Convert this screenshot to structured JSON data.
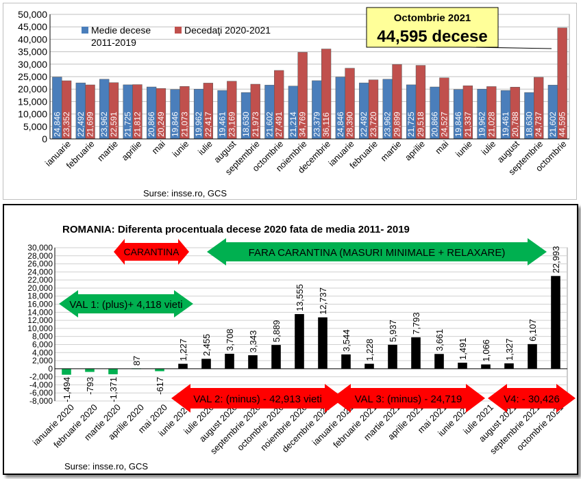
{
  "chart_data": [
    {
      "type": "bar",
      "title": "",
      "categories": [
        "ianuarie",
        "februarie",
        "martie",
        "aprilie",
        "mai",
        "iunie",
        "iulie",
        "august",
        "septembrie",
        "octombrie",
        "noiembrie",
        "decembrie",
        "ianuarie",
        "februarie",
        "martie",
        "aprilie",
        "mai",
        "iunie",
        "iulie",
        "august",
        "septembrie",
        "octombrie"
      ],
      "value_labels": [
        [
          "24,846",
          "22,492",
          "23,962",
          "21,725",
          "20,866",
          "19,846",
          "19,962",
          "19,461",
          "18,630",
          "21,602",
          "21,214",
          "23,379",
          "24,846",
          "22,492",
          "23,962",
          "21,725",
          "20,866",
          "19,846",
          "19,962",
          "19,461",
          "18,630",
          "21,602"
        ],
        [
          "23,352",
          "21,699",
          "22,591",
          "21,812",
          "20,249",
          "21,073",
          "22,417",
          "23,169",
          "21,973",
          "27,491",
          "34,769",
          "36,116",
          "28,390",
          "23,720",
          "29,899",
          "29,518",
          "24,527",
          "21,337",
          "21,028",
          "20,788",
          "24,737",
          "44,595"
        ]
      ],
      "series": [
        {
          "name": "Medie decese 2011-2019",
          "color": "#4a7ebb",
          "values": [
            24846,
            22492,
            23962,
            21725,
            20866,
            19846,
            19962,
            19461,
            18630,
            21602,
            21214,
            23379,
            24846,
            22492,
            23962,
            21725,
            20866,
            19846,
            19962,
            19461,
            18630,
            21602
          ]
        },
        {
          "name": "Decedaţi 2020-2021",
          "color": "#c0504d",
          "values": [
            23352,
            21699,
            22591,
            21812,
            20249,
            21073,
            22417,
            23169,
            21973,
            27491,
            34769,
            36116,
            28390,
            23720,
            29899,
            29518,
            24527,
            21337,
            21028,
            20788,
            24737,
            44595
          ]
        }
      ],
      "ylim": [
        0,
        50000
      ],
      "yticks": [
        "0",
        "5,000",
        "10,000",
        "15,000",
        "20,000",
        "25,000",
        "30,000",
        "35,000",
        "40,000",
        "45,000",
        "50,000"
      ],
      "legend": {
        "series1_line1": "Medie decese",
        "series1_line2": "2011-2019",
        "series2": "Decedaţi 2020-2021"
      },
      "callout": {
        "line1": "Octombrie 2021",
        "line2": "44,595 decese",
        "fill": "#ffff99"
      },
      "source": "Surse: insse.ro, GCS"
    },
    {
      "type": "bar",
      "title": "ROMANIA: Diferenta procentuala decese 2020 fata de media 2011- 2019",
      "categories": [
        "ianuarie 2020",
        "februarie 2020",
        "martie 2020",
        "aprilie 2020",
        "mai 2020",
        "iunie 2020",
        "iulie 2020",
        "august 2020",
        "septembrie 2020",
        "octombrie 2020",
        "noiembrie 2020",
        "decembrie 2020",
        "ianuarie 2021",
        "februarie 2021",
        "martie 2021",
        "aprilie 2021",
        "mai 2021",
        "iunie 2021",
        "iulie 2021",
        "august 2021",
        "septembrie 2021",
        "octombrie 2021"
      ],
      "values": [
        -1494,
        -793,
        -1371,
        87,
        -617,
        1227,
        2455,
        3708,
        3343,
        5889,
        13555,
        12737,
        3544,
        1228,
        5937,
        7793,
        3661,
        1491,
        1066,
        1327,
        6107,
        22993
      ],
      "value_labels": [
        "-1,494",
        "-793",
        "-1,371",
        "87",
        "-617",
        "1,227",
        "2,455",
        "3,708",
        "3,343",
        "5,889",
        "13,555",
        "12,737",
        "3,544",
        "1,228",
        "5,937",
        "7,793",
        "3,661",
        "1,491",
        "1,066",
        "1,327",
        "6,107",
        "22,993"
      ],
      "bar_colors": [
        "#00b050",
        "#00b050",
        "#00b050",
        "#00b050",
        "#00b050",
        "#000000",
        "#000000",
        "#000000",
        "#000000",
        "#000000",
        "#000000",
        "#000000",
        "#000000",
        "#000000",
        "#000000",
        "#000000",
        "#000000",
        "#000000",
        "#000000",
        "#000000",
        "#000000",
        "#000000"
      ],
      "ylim": [
        -8000,
        30000
      ],
      "yticks": [
        "-8,000",
        "-6,000",
        "-4,000",
        "-2,000",
        "0",
        "2,000",
        "4,000",
        "6,000",
        "8,000",
        "10,000",
        "12,000",
        "14,000",
        "16,000",
        "18,000",
        "20,000",
        "22,000",
        "24,000",
        "26,000",
        "28,000",
        "30,000"
      ],
      "annotations": {
        "carantina": "CARANTINA",
        "fara_carantina": "FARA CARANTINA (MASURI MINIMALE + RELAXARE)",
        "val1": "VAL 1: (plus)+ 4,118 vieti",
        "val2": "VAL 2: (minus) - 42,913 vieti",
        "val3": "VAL 3: (minus) - 24,719",
        "val4": "V4: - 30,426"
      },
      "colors": {
        "red": "#ff0000",
        "green": "#00b050"
      },
      "source": "Surse: insse.ro, GCS"
    }
  ]
}
